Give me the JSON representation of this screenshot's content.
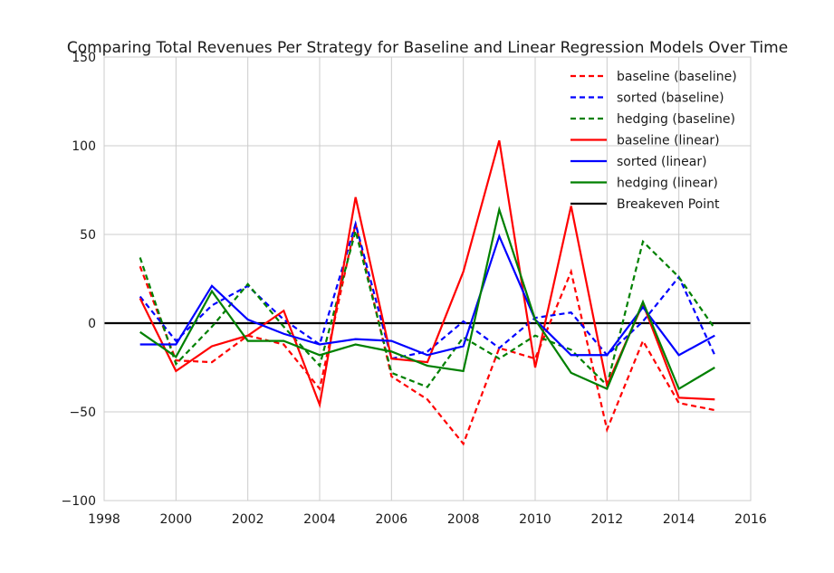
{
  "chart_data": {
    "type": "line",
    "title": "Comparing Total Revenues Per Strategy for Baseline and Linear Regression Models Over Time",
    "xlabel": "",
    "ylabel": "",
    "xlim": [
      1998,
      2016
    ],
    "ylim": [
      -100,
      150
    ],
    "xticks": [
      1998,
      2000,
      2002,
      2004,
      2006,
      2008,
      2010,
      2012,
      2014,
      2016
    ],
    "yticks": [
      -100,
      -50,
      0,
      50,
      100,
      150
    ],
    "grid": true,
    "legend_position": "top-right",
    "x": [
      1999,
      2000,
      2001,
      2002,
      2003,
      2004,
      2005,
      2006,
      2007,
      2008,
      2009,
      2010,
      2011,
      2012,
      2013,
      2014,
      2015
    ],
    "series": [
      {
        "name": "baseline (baseline)",
        "color": "#ff0000",
        "dash": "dashed",
        "values": [
          32,
          -21,
          -22,
          -7,
          -12,
          -37,
          56,
          -30,
          -43,
          -68,
          -14,
          -20,
          29,
          -60,
          -10,
          -45,
          -49
        ]
      },
      {
        "name": "sorted (baseline)",
        "color": "#0000ff",
        "dash": "dashed",
        "values": [
          15,
          -10,
          10,
          21,
          2,
          -12,
          56,
          -20,
          -16,
          1,
          -14,
          3,
          6,
          -18,
          1,
          26,
          -18
        ]
      },
      {
        "name": "hedging (baseline)",
        "color": "#008000",
        "dash": "dashed",
        "values": [
          37,
          -23,
          -2,
          22,
          -2,
          -24,
          52,
          -28,
          -36,
          -8,
          -20,
          -7,
          -15,
          -35,
          46,
          26,
          -3
        ]
      },
      {
        "name": "baseline (linear)",
        "color": "#ff0000",
        "dash": "solid",
        "values": [
          14,
          -27,
          -13,
          -7,
          7,
          -46,
          71,
          -20,
          -22,
          29,
          103,
          -25,
          66,
          -35,
          11,
          -42,
          -43
        ]
      },
      {
        "name": "sorted (linear)",
        "color": "#0000ff",
        "dash": "solid",
        "values": [
          -12,
          -12,
          21,
          2,
          -6,
          -12,
          -9,
          -10,
          -18,
          -13,
          49,
          2,
          -18,
          -18,
          9,
          -18,
          -7
        ]
      },
      {
        "name": "hedging (linear)",
        "color": "#008000",
        "dash": "solid",
        "values": [
          -5,
          -19,
          18,
          -10,
          -10,
          -18,
          -12,
          -16,
          -24,
          -27,
          64,
          2,
          -28,
          -37,
          12,
          -37,
          -25
        ]
      }
    ],
    "reference_lines": [
      {
        "name": "Breakeven Point",
        "y": 0,
        "color": "#000000"
      }
    ]
  }
}
